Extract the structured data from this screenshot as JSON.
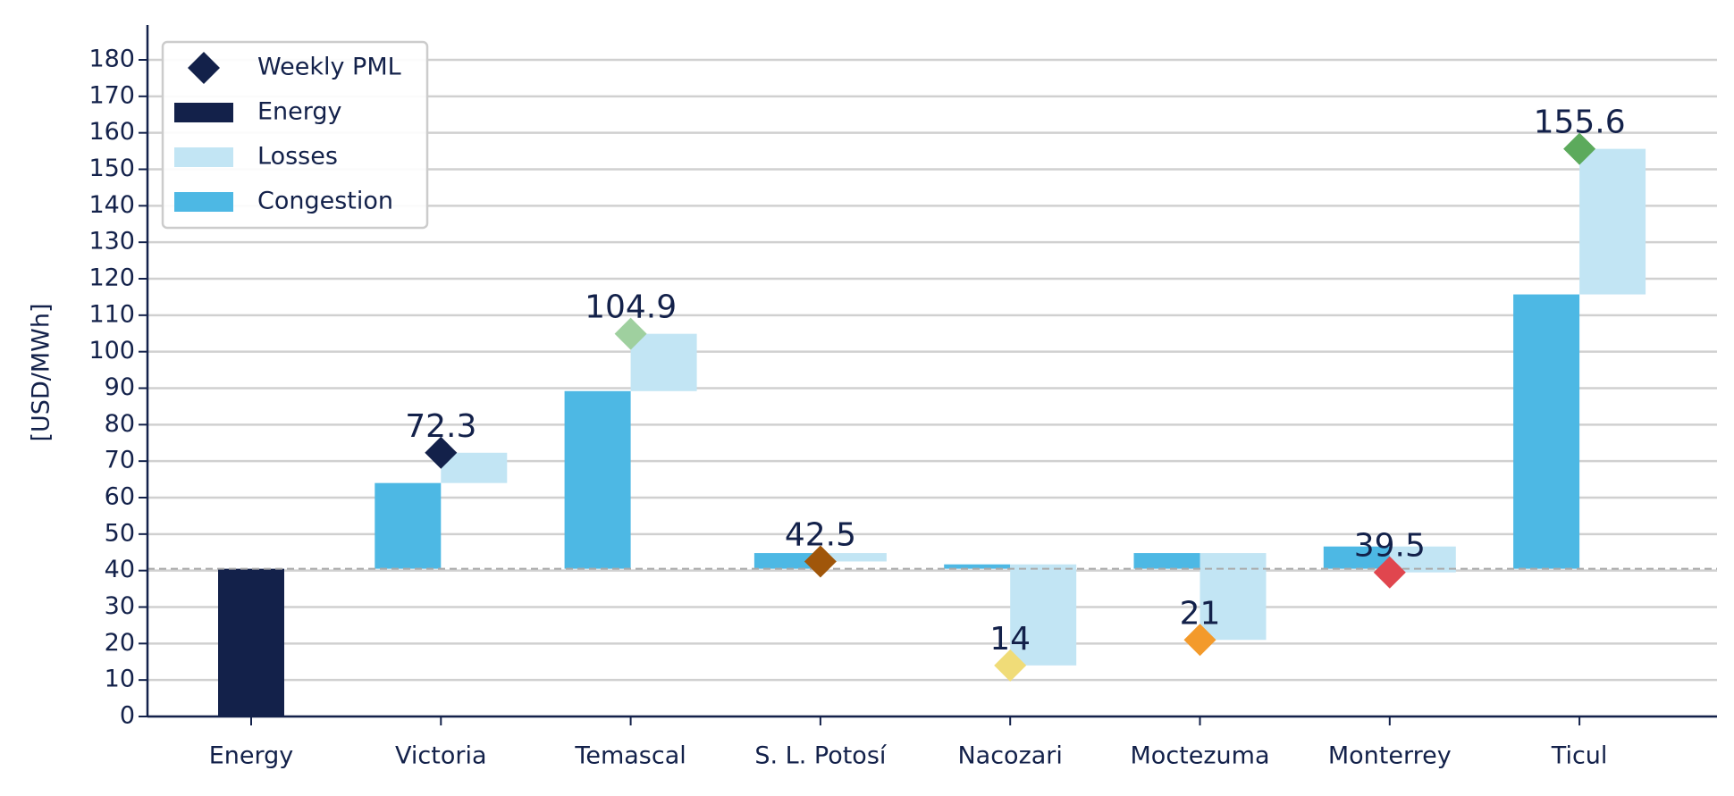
{
  "chart_data": {
    "type": "waterfall",
    "y_label": "[USD/MWh]",
    "categories": [
      "Energy",
      "Victoria",
      "Temascal",
      "S. L. Potosí",
      "Nacozari",
      "Moctezuma",
      "Monterrey",
      "Ticul"
    ],
    "series": [
      {
        "name": "Weekly PML",
        "kind": "marker",
        "color": "#13214a",
        "marker_colors": [
          null,
          "#13214a",
          "#9fd09f",
          "#a0560a",
          "#f0dc78",
          "#f39a2b",
          "#e0464e",
          "#5caa5c"
        ],
        "values": [
          null,
          72.3,
          104.9,
          42.5,
          14.0,
          21.0,
          39.5,
          155.6
        ]
      },
      {
        "name": "Energy",
        "kind": "energy",
        "color": "#13214a",
        "values": [
          40.5,
          null,
          null,
          null,
          null,
          null,
          null,
          null
        ]
      },
      {
        "name": "Losses",
        "kind": "losses",
        "color": "#c2e5f4",
        "values": [
          null,
          8.3,
          15.7,
          -2.3,
          -27.7,
          -23.8,
          -7.1,
          39.9
        ]
      },
      {
        "name": "Congestion",
        "kind": "congestion",
        "color": "#4db8e4",
        "values": [
          null,
          23.5,
          48.7,
          4.3,
          1.2,
          4.3,
          6.1,
          75.2
        ]
      }
    ],
    "ylim": [
      0,
      180
    ],
    "yticks": [
      0,
      10,
      20,
      30,
      40,
      50,
      60,
      70,
      80,
      90,
      100,
      110,
      120,
      130,
      140,
      150,
      160,
      170,
      180
    ],
    "grid": true,
    "legend": "upper left"
  }
}
